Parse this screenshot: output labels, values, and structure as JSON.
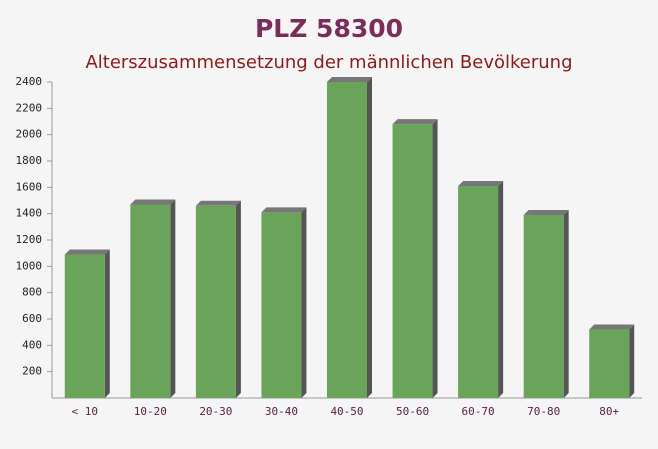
{
  "chart_data": {
    "type": "bar",
    "title": "PLZ 58300",
    "subtitle": "Alterszusammensetzung der männlichen Bevölkerung",
    "categories": [
      "< 10",
      "10-20",
      "20-30",
      "30-40",
      "40-50",
      "50-60",
      "60-70",
      "70-80",
      "80+"
    ],
    "values": [
      1090,
      1470,
      1460,
      1410,
      2400,
      2080,
      1610,
      1390,
      520
    ],
    "color": "#6aa35a",
    "ylim": [
      0,
      2400
    ],
    "yticks": [
      200,
      400,
      600,
      800,
      1000,
      1200,
      1400,
      1600,
      1800,
      2000,
      2200,
      2400
    ]
  }
}
